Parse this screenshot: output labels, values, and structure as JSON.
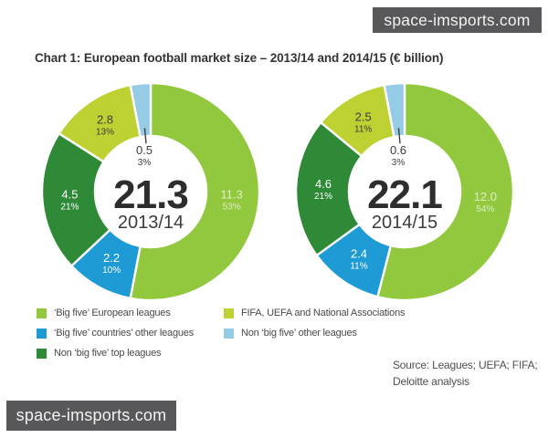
{
  "watermark": {
    "text": "space-imsports.com"
  },
  "title": "Chart 1: European football market size – 2013/14 and 2014/15 (€ billion)",
  "colors": {
    "big5_european": "#92c83e",
    "big5_countries_other": "#1e9ad4",
    "non_big5_top": "#2f8a38",
    "fifa_uefa": "#bdd133",
    "non_big5_other": "#96cbe5"
  },
  "chart_data": [
    {
      "type": "pie",
      "style": "donut",
      "total": "21.3",
      "season": "2013/14",
      "units": "€ billion",
      "segments": [
        {
          "name": "‘Big five’ European leagues",
          "value": "11.3",
          "pct": "53%",
          "color": "big5_european",
          "tone": "pale",
          "placement": "ring"
        },
        {
          "name": "‘Big five’ countries’ other leagues",
          "value": "2.2",
          "pct": "10%",
          "color": "big5_countries_other",
          "tone": "white",
          "placement": "ring"
        },
        {
          "name": "Non ‘big five’ top leagues",
          "value": "4.5",
          "pct": "21%",
          "color": "non_big5_top",
          "tone": "white",
          "placement": "ring"
        },
        {
          "name": "FIFA, UEFA and National Associations",
          "value": "2.8",
          "pct": "13%",
          "color": "fifa_uefa",
          "tone": "dark",
          "placement": "ring"
        },
        {
          "name": "Non ‘big five’ other leagues",
          "value": "0.5",
          "pct": "3%",
          "color": "non_big5_other",
          "tone": "dark",
          "placement": "hole"
        }
      ]
    },
    {
      "type": "pie",
      "style": "donut",
      "total": "22.1",
      "season": "2014/15",
      "units": "€ billion",
      "segments": [
        {
          "name": "‘Big five’ European leagues",
          "value": "12.0",
          "pct": "54%",
          "color": "big5_european",
          "tone": "pale",
          "placement": "ring"
        },
        {
          "name": "‘Big five’ countries’ other leagues",
          "value": "2.4",
          "pct": "11%",
          "color": "big5_countries_other",
          "tone": "white",
          "placement": "ring"
        },
        {
          "name": "Non ‘big five’ top leagues",
          "value": "4.6",
          "pct": "21%",
          "color": "non_big5_top",
          "tone": "white",
          "placement": "ring"
        },
        {
          "name": "FIFA, UEFA and National Associations",
          "value": "2.5",
          "pct": "11%",
          "color": "fifa_uefa",
          "tone": "dark",
          "placement": "ring"
        },
        {
          "name": "Non ‘big five’ other leagues",
          "value": "0.6",
          "pct": "3%",
          "color": "non_big5_other",
          "tone": "dark",
          "placement": "hole"
        }
      ]
    }
  ],
  "legend": {
    "items": [
      {
        "label": "‘Big five’ European leagues",
        "color": "big5_european"
      },
      {
        "label": "‘Big five’ countries’ other leagues",
        "color": "big5_countries_other"
      },
      {
        "label": "Non ‘big five’ top leagues",
        "color": "non_big5_top"
      },
      {
        "label": "FIFA, UEFA and National Associations",
        "color": "fifa_uefa"
      },
      {
        "label": "Non ‘big five’ other leagues",
        "color": "non_big5_other"
      }
    ]
  },
  "source": {
    "line1": "Source: Leagues; UEFA; FIFA;",
    "line2": "Deloitte analysis"
  }
}
